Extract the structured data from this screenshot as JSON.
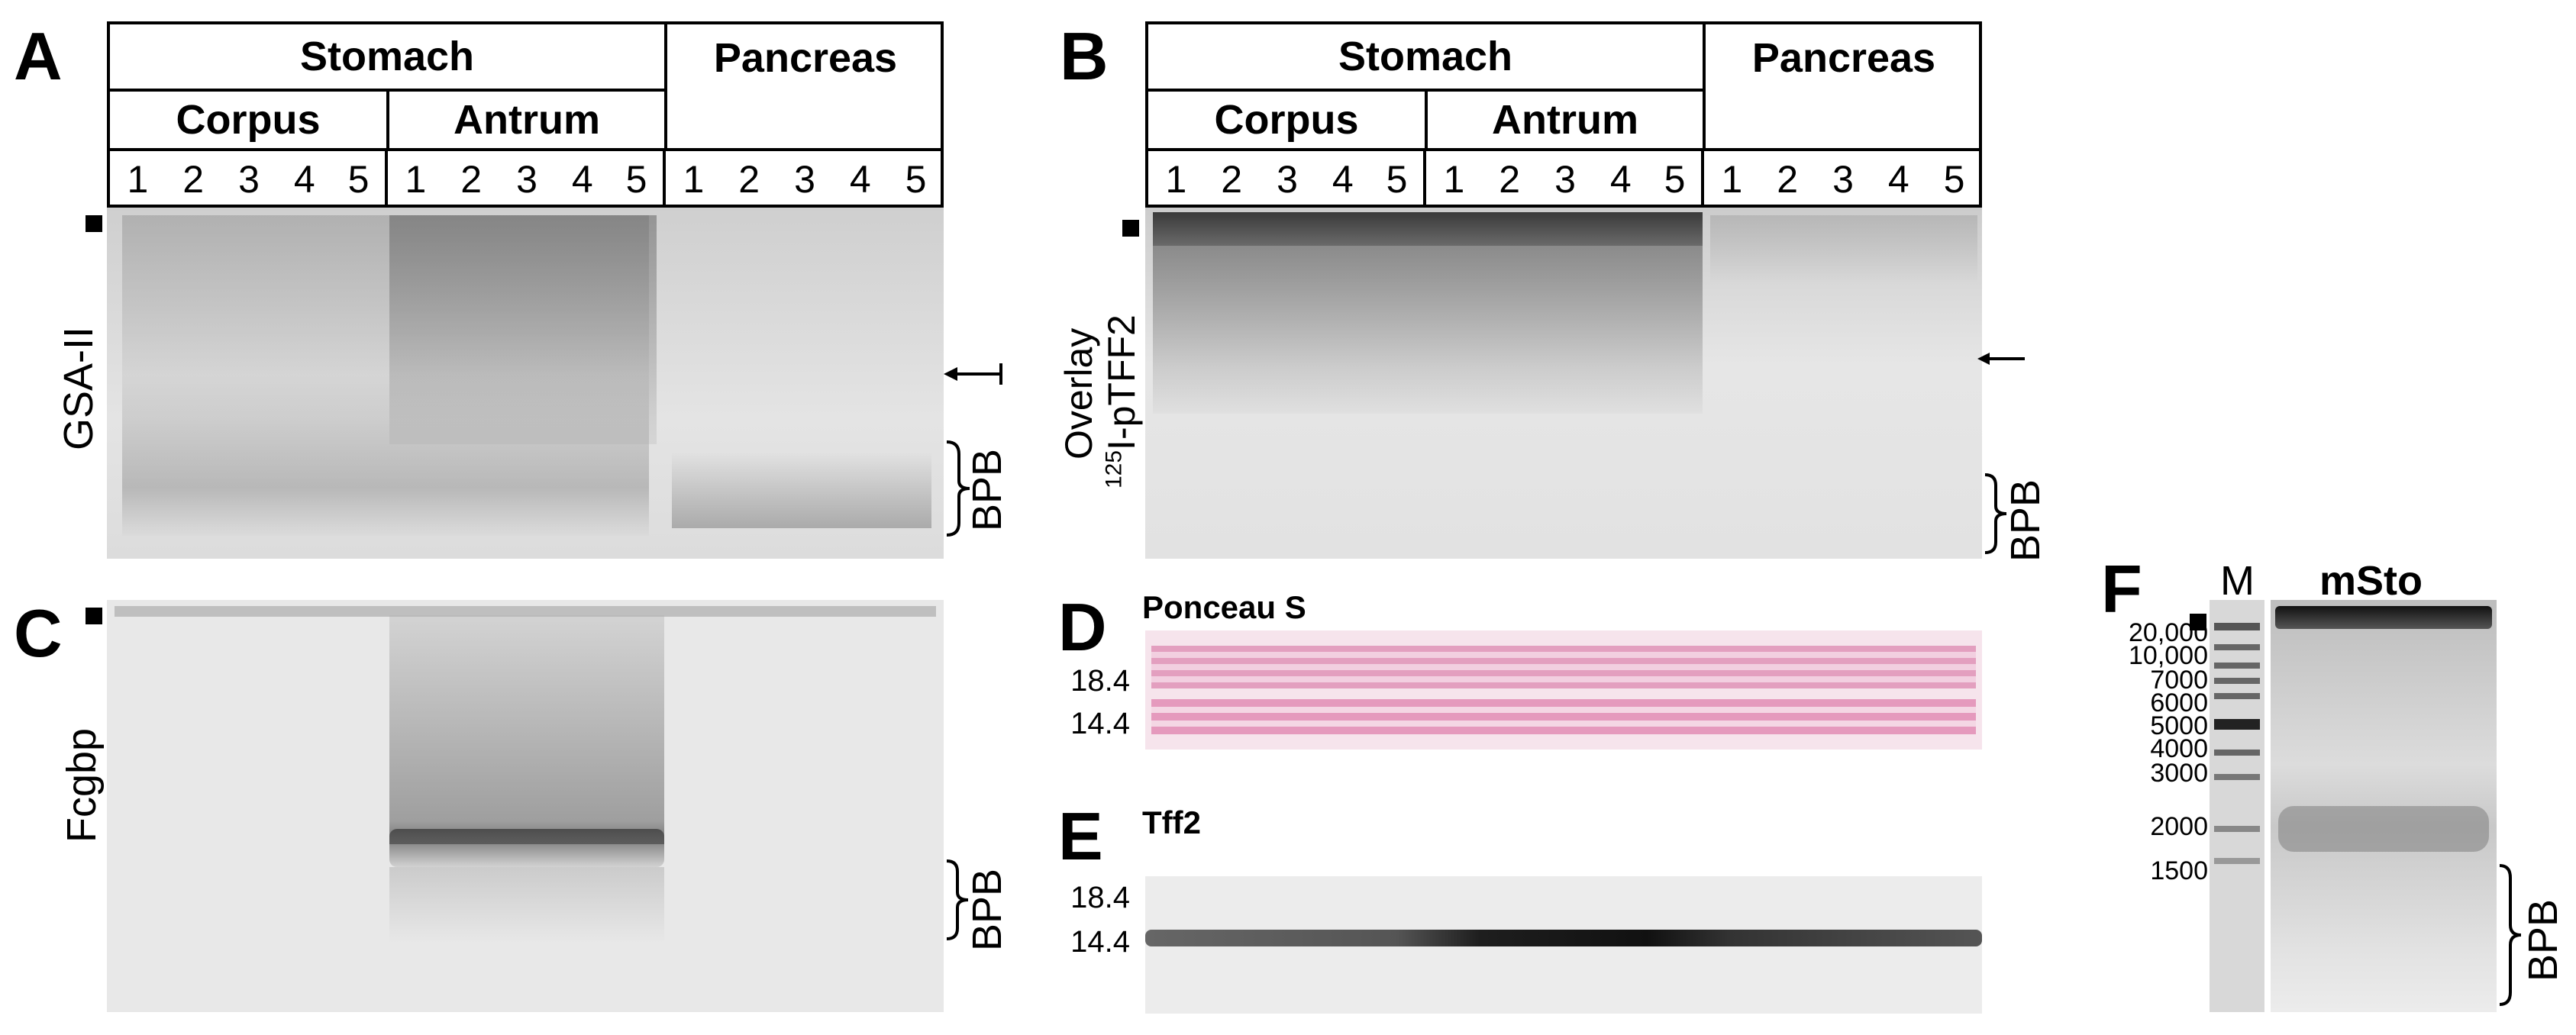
{
  "panels": {
    "a": {
      "letter": "A",
      "stain": "GSA-II",
      "bpb": "BPB"
    },
    "b": {
      "letter": "B",
      "stain_line1": "Overlay",
      "stain_line2_sup": "125",
      "stain_line2": "I-pTFF2",
      "bpb": "BPB"
    },
    "c": {
      "letter": "C",
      "stain": "Fcgbp",
      "bpb": "BPB"
    },
    "d": {
      "letter": "D",
      "stain": "Ponceau S",
      "marker_top": "18.4",
      "marker_bottom": "14.4"
    },
    "e": {
      "letter": "E",
      "stain": "Tff2",
      "marker_top": "18.4",
      "marker_bottom": "14.4"
    },
    "f": {
      "letter": "F",
      "lane_m": "M",
      "lane_msto": "mSto",
      "bpb": "BPB",
      "markers": [
        "20,000",
        "10,000",
        "7000",
        "6000",
        "5000",
        "4000",
        "3000",
        "2000",
        "1500"
      ]
    }
  },
  "header": {
    "stomach": "Stomach",
    "pancreas": "Pancreas",
    "corpus": "Corpus",
    "antrum": "Antrum",
    "lanes": [
      "1",
      "2",
      "3",
      "4",
      "5",
      "1",
      "2",
      "3",
      "4",
      "5",
      "1",
      "2",
      "3",
      "4",
      "5"
    ]
  },
  "colors": {
    "gel_bg": "#d9d9d9",
    "ponceau": "#e8a6c4",
    "band": "#2b2b2b"
  }
}
